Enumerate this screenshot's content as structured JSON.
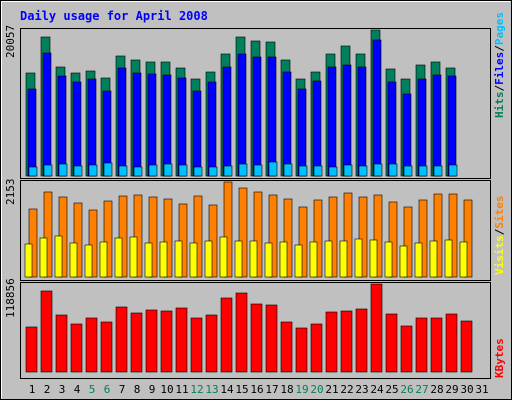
{
  "chart_data": [
    {
      "type": "bar",
      "title": "Daily usage for April 2008",
      "categories": [
        "1",
        "2",
        "3",
        "4",
        "5",
        "6",
        "7",
        "8",
        "9",
        "10",
        "11",
        "12",
        "13",
        "14",
        "15",
        "16",
        "17",
        "18",
        "19",
        "20",
        "21",
        "22",
        "23",
        "24",
        "25",
        "26",
        "27",
        "28",
        "29",
        "30",
        "31"
      ],
      "weekend_days": [
        "5",
        "6",
        "12",
        "13",
        "19",
        "20",
        "26",
        "27"
      ],
      "ymax_label": "20057",
      "ymax": 20057,
      "right_labels": [
        {
          "text": "Hits",
          "color": "#00805c"
        },
        {
          "text": "/",
          "color": "#000000"
        },
        {
          "text": "Files",
          "color": "#0000ff"
        },
        {
          "text": "/",
          "color": "#000000"
        },
        {
          "text": "Pages",
          "color": "#00c0ff"
        }
      ],
      "series": [
        {
          "name": "Hits",
          "color": "#00805c",
          "values": [
            14200,
            19100,
            15000,
            14100,
            14400,
            13400,
            16500,
            15900,
            15600,
            15600,
            14900,
            13300,
            14300,
            16800,
            19100,
            18500,
            18400,
            16000,
            13300,
            14300,
            16700,
            17900,
            16700,
            20057,
            14700,
            13300,
            15300,
            15600,
            14900,
            0,
            0
          ]
        },
        {
          "name": "Files",
          "color": "#0000ff",
          "values": [
            11900,
            16900,
            13800,
            12900,
            13300,
            11700,
            14900,
            14200,
            14000,
            13900,
            13500,
            11700,
            12900,
            15000,
            16700,
            16400,
            16300,
            14300,
            11900,
            13100,
            15000,
            15300,
            15000,
            18700,
            12900,
            11300,
            13300,
            13900,
            13800,
            0,
            0
          ]
        },
        {
          "name": "Pages",
          "color": "#00c0ff",
          "values": [
            1300,
            1500,
            1700,
            1400,
            1500,
            1800,
            1400,
            1300,
            1500,
            1600,
            1500,
            1300,
            1300,
            1400,
            1600,
            1500,
            1900,
            1700,
            1400,
            1400,
            1300,
            1500,
            1400,
            1600,
            1700,
            1400,
            1400,
            1400,
            1500,
            0,
            0
          ]
        }
      ]
    },
    {
      "type": "bar",
      "categories": [
        "1",
        "2",
        "3",
        "4",
        "5",
        "6",
        "7",
        "8",
        "9",
        "10",
        "11",
        "12",
        "13",
        "14",
        "15",
        "16",
        "17",
        "18",
        "19",
        "20",
        "21",
        "22",
        "23",
        "24",
        "25",
        "26",
        "27",
        "28",
        "29",
        "30",
        "31"
      ],
      "ymax_label": "2153",
      "ymax": 2153,
      "right_labels": [
        {
          "text": "Visits",
          "color": "#ffff00"
        },
        {
          "text": "/",
          "color": "#000000"
        },
        {
          "text": "Sites",
          "color": "#ff8000"
        }
      ],
      "series": [
        {
          "name": "Sites",
          "color": "#ff8000",
          "values": [
            1550,
            1930,
            1820,
            1680,
            1520,
            1730,
            1830,
            1850,
            1820,
            1760,
            1650,
            1830,
            1640,
            2153,
            2020,
            1920,
            1860,
            1760,
            1590,
            1750,
            1820,
            1910,
            1820,
            1860,
            1710,
            1590,
            1750,
            1870,
            1870,
            1750,
            0
          ]
        },
        {
          "name": "Visits",
          "color": "#ffff00",
          "values": [
            740,
            880,
            940,
            760,
            720,
            790,
            880,
            900,
            770,
            800,
            810,
            760,
            820,
            900,
            820,
            810,
            760,
            800,
            720,
            790,
            810,
            820,
            870,
            840,
            790,
            700,
            780,
            810,
            830,
            800,
            0
          ]
        }
      ]
    },
    {
      "type": "bar",
      "categories": [
        "1",
        "2",
        "3",
        "4",
        "5",
        "6",
        "7",
        "8",
        "9",
        "10",
        "11",
        "12",
        "13",
        "14",
        "15",
        "16",
        "17",
        "18",
        "19",
        "20",
        "21",
        "22",
        "23",
        "24",
        "25",
        "26",
        "27",
        "28",
        "29",
        "30",
        "31"
      ],
      "ymax_label": "118856",
      "ymax": 118856,
      "right_labels": [
        {
          "text": "KBytes",
          "color": "#ff0000"
        }
      ],
      "series": [
        {
          "name": "KBytes",
          "color": "#ff0000",
          "values": [
            61000,
            110000,
            77000,
            65000,
            73000,
            67000,
            88000,
            80000,
            84000,
            82000,
            87000,
            73000,
            77000,
            100000,
            107000,
            92000,
            91000,
            67000,
            60000,
            65000,
            81000,
            83000,
            85000,
            118856,
            79000,
            62000,
            73000,
            73000,
            78000,
            69000,
            0
          ]
        }
      ]
    }
  ]
}
